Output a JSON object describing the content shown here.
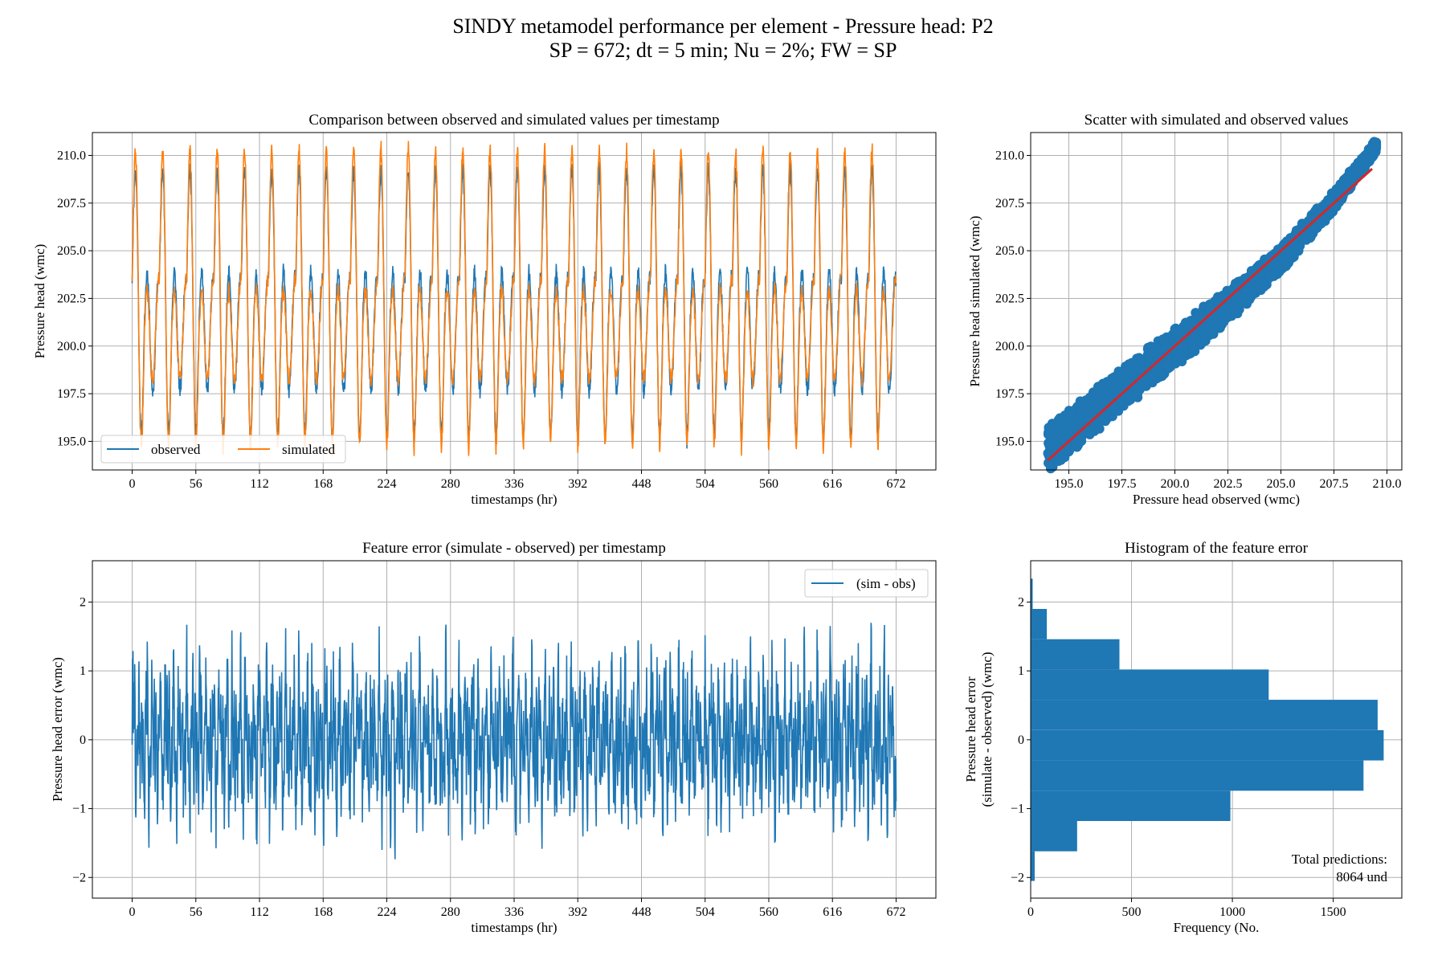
{
  "figure": {
    "title_line1": "SINDY metamodel performance per element - Pressure head: P2",
    "title_line2": "SP = 672; dt = 5 min; Nu = 2%; FW = SP"
  },
  "colors": {
    "observed": "#1f77b4",
    "simulated": "#ff7f0e",
    "fit_line": "#d62728",
    "grid": "#b0b0b0",
    "error": "#1f77b4",
    "hist": "#1f77b4"
  },
  "chart_data": [
    {
      "id": "timeseries",
      "type": "line",
      "title": "Comparison between observed and simulated values per timestamp",
      "xlabel": "timestamps (hr)",
      "ylabel": "Pressure head (wmc)",
      "xlim": [
        -35,
        707
      ],
      "ylim": [
        193.5,
        211.2
      ],
      "xticks": [
        0,
        56,
        112,
        168,
        224,
        280,
        336,
        392,
        448,
        504,
        560,
        616,
        672
      ],
      "xtick_labels": [
        "0",
        "56",
        "112",
        "168",
        "224",
        "280",
        "336",
        "392",
        "448",
        "504",
        "560",
        "616",
        "672"
      ],
      "yticks": [
        195.0,
        197.5,
        200.0,
        202.5,
        205.0,
        207.5,
        210.0
      ],
      "ytick_labels": [
        "195.0",
        "197.5",
        "200.0",
        "202.5",
        "205.0",
        "207.5",
        "210.0"
      ],
      "grid": true,
      "legend": {
        "placement": "lower-left",
        "columns": 2
      },
      "period_hr": 24,
      "x_range": [
        0,
        672
      ],
      "daily_profile_hours": [
        0,
        1,
        2,
        3,
        4,
        5,
        6,
        7,
        8,
        9,
        10,
        11,
        12,
        13,
        14,
        15,
        16,
        17,
        18,
        19,
        20,
        21,
        22,
        23,
        24
      ],
      "series": [
        {
          "name": "observed",
          "color": "#1f77b4",
          "daily_profile": [
            203.5,
            206.5,
            208.7,
            209.3,
            208.0,
            204.5,
            200.0,
            196.5,
            195.0,
            196.2,
            198.8,
            201.5,
            203.0,
            204.0,
            203.5,
            202.0,
            200.0,
            198.2,
            197.6,
            198.0,
            199.5,
            201.5,
            203.0,
            203.6,
            203.5
          ]
        },
        {
          "name": "simulated",
          "color": "#ff7f0e",
          "daily_profile": [
            203.6,
            207.2,
            209.6,
            210.4,
            208.8,
            204.8,
            200.0,
            196.2,
            194.6,
            195.8,
            198.4,
            201.0,
            202.4,
            203.0,
            202.6,
            201.4,
            199.8,
            198.6,
            198.2,
            198.6,
            199.8,
            201.2,
            202.6,
            203.4,
            203.6
          ]
        }
      ]
    },
    {
      "id": "scatter",
      "type": "scatter",
      "title": "Scatter with simulated and observed values",
      "xlabel": "Pressure head observed (wmc)",
      "ylabel": "Pressure head simulated (wmc)",
      "xlim": [
        193.2,
        210.7
      ],
      "ylim": [
        193.5,
        211.2
      ],
      "xticks": [
        195.0,
        197.5,
        200.0,
        202.5,
        205.0,
        207.5,
        210.0
      ],
      "xtick_labels": [
        "195.0",
        "197.5",
        "200.0",
        "202.5",
        "205.0",
        "207.5",
        "210.0"
      ],
      "yticks": [
        195.0,
        197.5,
        200.0,
        202.5,
        205.0,
        207.5,
        210.0
      ],
      "ytick_labels": [
        "195.0",
        "197.5",
        "200.0",
        "202.5",
        "205.0",
        "207.5",
        "210.0"
      ],
      "grid": true,
      "trend": [
        {
          "x": 194.0,
          "y": 194.5
        },
        {
          "x": 197.5,
          "y": 197.8
        },
        {
          "x": 200.0,
          "y": 199.9
        },
        {
          "x": 202.5,
          "y": 202.1
        },
        {
          "x": 205.0,
          "y": 204.6
        },
        {
          "x": 207.5,
          "y": 207.6
        },
        {
          "x": 209.5,
          "y": 210.5
        }
      ],
      "band_halfwidth": [
        1.3,
        1.0,
        0.4
      ],
      "fit_line": {
        "x": [
          194.0,
          209.3
        ],
        "y": [
          194.0,
          209.3
        ],
        "color": "#d62728"
      }
    },
    {
      "id": "error",
      "type": "line",
      "title": "Feature error (simulate - observed) per timestamp",
      "xlabel": "timestamps (hr)",
      "ylabel": "Pressure head error (wmc)",
      "xlim": [
        -35,
        707
      ],
      "ylim": [
        -2.3,
        2.6
      ],
      "xticks": [
        0,
        56,
        112,
        168,
        224,
        280,
        336,
        392,
        448,
        504,
        560,
        616,
        672
      ],
      "xtick_labels": [
        "0",
        "56",
        "112",
        "168",
        "224",
        "280",
        "336",
        "392",
        "448",
        "504",
        "560",
        "616",
        "672"
      ],
      "yticks": [
        -2,
        -1,
        0,
        1,
        2
      ],
      "ytick_labels": [
        "−2",
        "−1",
        "0",
        "1",
        "2"
      ],
      "grid": true,
      "legend": {
        "placement": "top-right"
      },
      "series": [
        {
          "name": "(sim - obs)",
          "color": "#1f77b4",
          "min": -2.1,
          "max": 2.4
        }
      ]
    },
    {
      "id": "histogram",
      "type": "bar",
      "orientation": "horizontal",
      "title": "Histogram of the feature error",
      "xlabel": "Frequency (No.",
      "ylabel_line1": "Pressure head error",
      "ylabel_line2": "(simulate - observed) (wmc)",
      "xlim": [
        0,
        1840
      ],
      "ylim": [
        -2.3,
        2.6
      ],
      "xticks": [
        0,
        500,
        1000,
        1500
      ],
      "xtick_labels": [
        "0",
        "500",
        "1000",
        "1500"
      ],
      "yticks": [
        -2,
        -1,
        0,
        1,
        2
      ],
      "ytick_labels": [
        "−2",
        "−1",
        "0",
        "1",
        "2"
      ],
      "grid": true,
      "bins": [
        {
          "y0": -2.05,
          "y1": -1.62,
          "count": 20
        },
        {
          "y0": -1.62,
          "y1": -1.18,
          "count": 230
        },
        {
          "y0": -1.18,
          "y1": -0.74,
          "count": 990
        },
        {
          "y0": -0.74,
          "y1": -0.3,
          "count": 1650
        },
        {
          "y0": -0.3,
          "y1": 0.14,
          "count": 1750
        },
        {
          "y0": 0.14,
          "y1": 0.58,
          "count": 1720
        },
        {
          "y0": 0.58,
          "y1": 1.02,
          "count": 1180
        },
        {
          "y0": 1.02,
          "y1": 1.46,
          "count": 440
        },
        {
          "y0": 1.46,
          "y1": 1.9,
          "count": 80
        },
        {
          "y0": 1.9,
          "y1": 2.34,
          "count": 10
        }
      ],
      "annotation_line1": "Total predictions:",
      "annotation_line2": "8064 und"
    }
  ]
}
